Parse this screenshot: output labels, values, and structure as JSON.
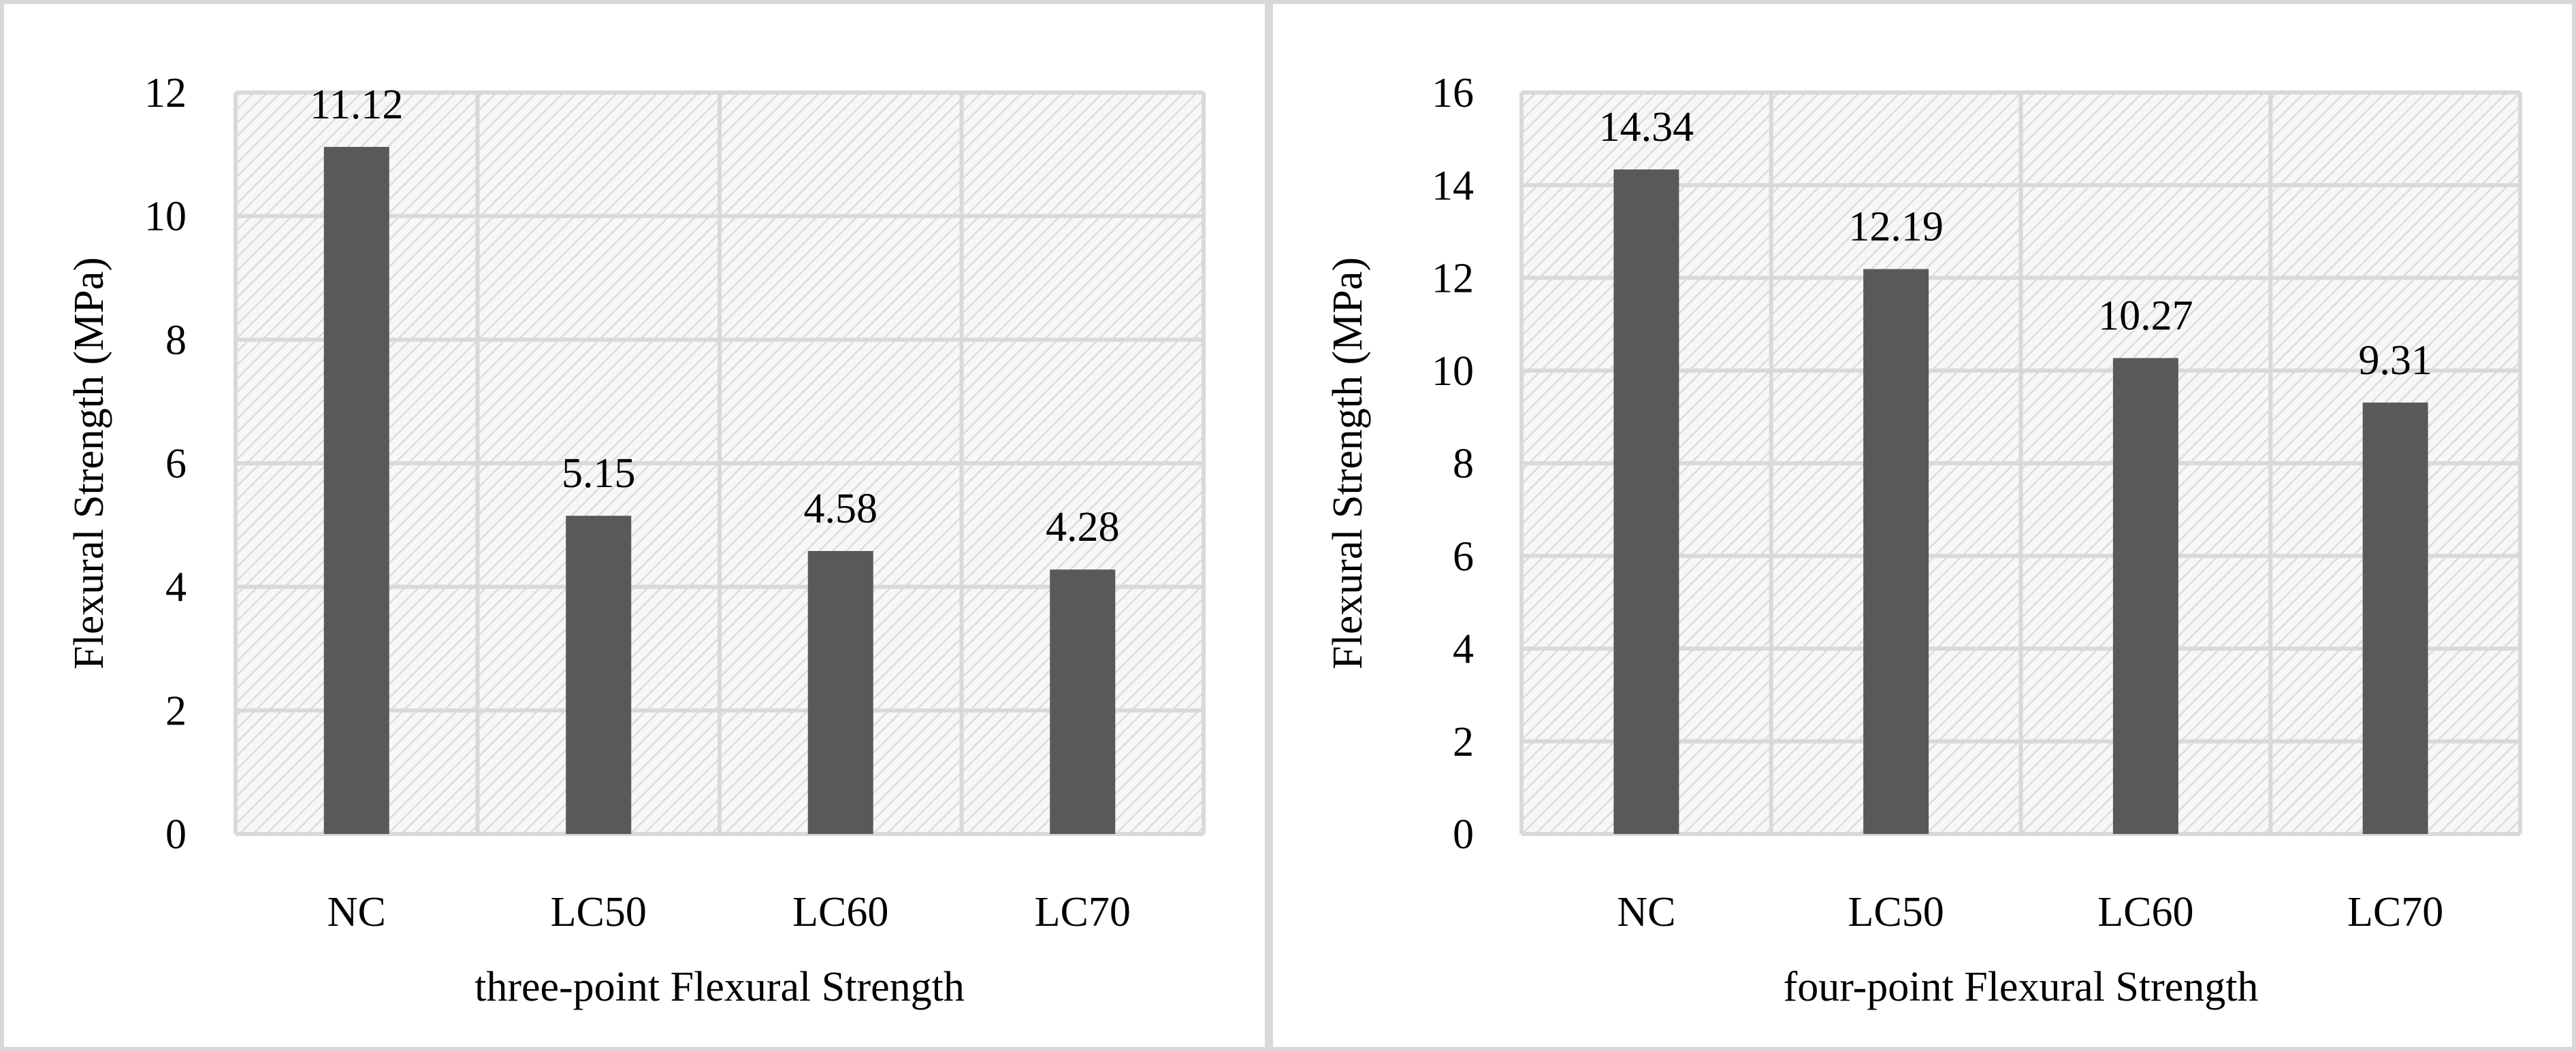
{
  "chart_data": [
    {
      "type": "bar",
      "categories": [
        "NC",
        "LC50",
        "LC60",
        "LC70"
      ],
      "values": [
        11.12,
        5.15,
        4.58,
        4.28
      ],
      "data_labels": [
        "11.12",
        "5.15",
        "4.58",
        "4.28"
      ],
      "ylim": [
        0,
        12
      ],
      "yticks": [
        "0",
        "2",
        "4",
        "6",
        "8",
        "10",
        "12"
      ],
      "ylabel": "Flexural Strength (MPa)",
      "xlabel": "three-point Flexural Strength",
      "grid": true,
      "plot_background": "hatched",
      "bar_color": "#595959"
    },
    {
      "type": "bar",
      "categories": [
        "NC",
        "LC50",
        "LC60",
        "LC70"
      ],
      "values": [
        14.34,
        12.19,
        10.27,
        9.31
      ],
      "data_labels": [
        "14.34",
        "12.19",
        "10.27",
        "9.31"
      ],
      "ylim": [
        0,
        16
      ],
      "yticks": [
        "0",
        "2",
        "4",
        "6",
        "8",
        "10",
        "12",
        "14",
        "16"
      ],
      "ylabel": "Flexural Strength (MPa)",
      "xlabel": "four-point Flexural Strength",
      "grid": true,
      "plot_background": "hatched",
      "bar_color": "#595959"
    }
  ]
}
